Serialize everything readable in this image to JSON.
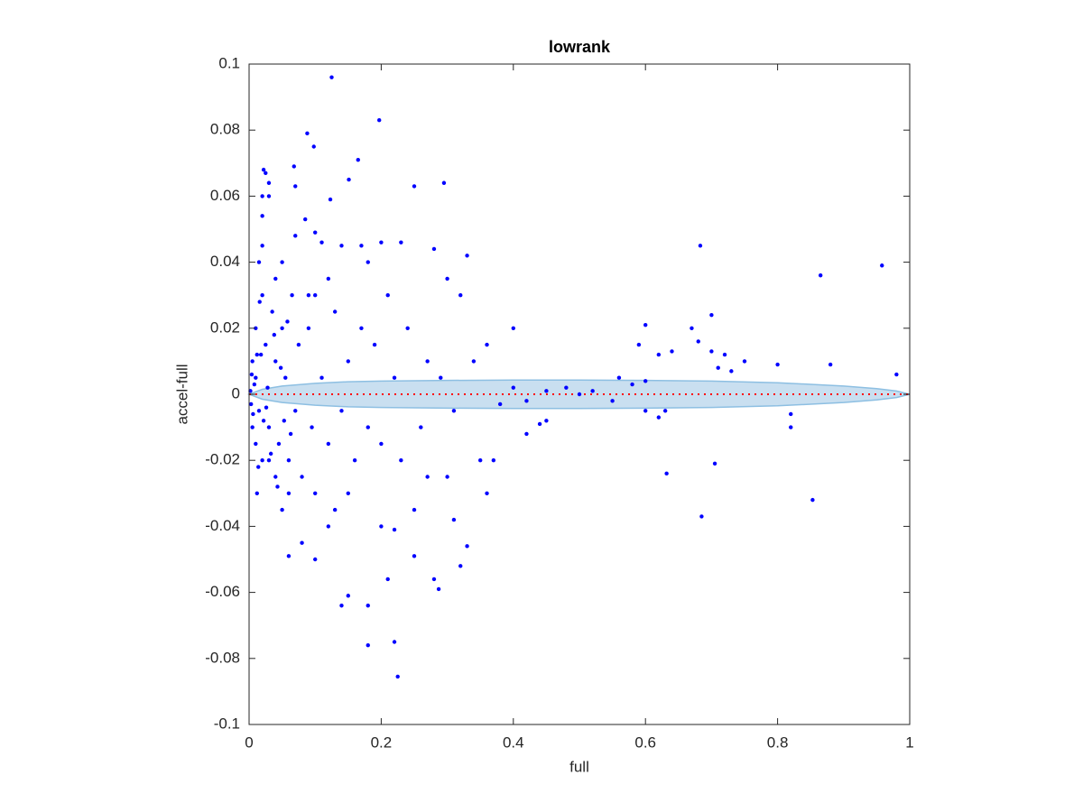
{
  "chart_data": {
    "type": "scatter",
    "title": "lowrank",
    "xlabel": "full",
    "ylabel": "accel-full",
    "xlim": [
      0,
      1
    ],
    "xticks": [
      0,
      0.2,
      0.4,
      0.6,
      0.8,
      1
    ],
    "ylim": [
      -0.1,
      0.1
    ],
    "yticks": [
      -0.1,
      -0.08,
      -0.06,
      -0.04,
      -0.02,
      0,
      0.02,
      0.04,
      0.06,
      0.08,
      0.1
    ],
    "band": {
      "color": "#c9dff0",
      "edge_color": "#8dbfe2",
      "x": [
        0,
        0.02,
        0.05,
        0.1,
        0.15,
        0.2,
        0.3,
        0.4,
        0.5,
        0.6,
        0.7,
        0.8,
        0.85,
        0.9,
        0.95,
        0.98,
        1
      ],
      "upper": [
        0,
        0.0015,
        0.0025,
        0.0033,
        0.0038,
        0.004,
        0.0042,
        0.0043,
        0.0043,
        0.0042,
        0.004,
        0.0035,
        0.003,
        0.0025,
        0.0017,
        0.001,
        0
      ],
      "lower": [
        0,
        -0.0015,
        -0.0025,
        -0.0033,
        -0.0038,
        -0.004,
        -0.0042,
        -0.0043,
        -0.0043,
        -0.0042,
        -0.004,
        -0.0035,
        -0.003,
        -0.0025,
        -0.0017,
        -0.001,
        0
      ]
    },
    "reference_line": {
      "y": 0,
      "color": "#ff0000"
    },
    "series": [
      {
        "color": "#0000ff",
        "x": [
          0.125,
          0.197,
          0.088,
          0.098,
          0.165,
          0.068,
          0.022,
          0.025,
          0.03,
          0.07,
          0.151,
          0.25,
          0.295,
          0.02,
          0.03,
          0.123,
          0.02,
          0.085,
          0.07,
          0.1,
          0.11,
          0.2,
          0.23,
          0.28,
          0.33,
          0.683,
          0.865,
          0.958,
          0.02,
          0.05,
          0.14,
          0.17,
          0.18,
          0.3,
          0.32,
          0.4,
          0.6,
          0.7,
          0.67,
          0.72,
          0.75,
          0.8,
          0.88,
          0.98,
          0.59,
          0.62,
          0.64,
          0.68,
          0.7,
          0.71,
          0.73,
          0.56,
          0.6,
          0.225,
          0.18,
          0.22,
          0.18,
          0.14,
          0.15,
          0.287,
          0.21,
          0.28,
          0.32,
          0.25,
          0.06,
          0.1,
          0.33,
          0.31,
          0.36,
          0.685,
          0.853,
          0.632,
          0.705,
          0.82,
          0.82,
          0.6,
          0.62,
          0.63,
          0.44,
          0.45,
          0.42,
          0.35,
          0.37,
          0.3,
          0.27,
          0.08,
          0.12,
          0.13,
          0.2,
          0.22,
          0.25,
          0.1,
          0.05,
          0.04,
          0.03,
          0.06,
          0.15,
          0.005,
          0.005,
          0.01,
          0.01,
          0.01,
          0.015,
          0.008,
          0.003,
          0.02,
          0.02,
          0.025,
          0.03,
          0.035,
          0.04,
          0.045,
          0.05,
          0.055,
          0.06,
          0.065,
          0.07,
          0.075,
          0.08,
          0.09,
          0.095,
          0.1,
          0.11,
          0.12,
          0.13,
          0.14,
          0.15,
          0.16,
          0.17,
          0.18,
          0.19,
          0.2,
          0.21,
          0.22,
          0.23,
          0.24,
          0.26,
          0.27,
          0.29,
          0.31,
          0.34,
          0.36,
          0.38,
          0.4,
          0.42,
          0.45,
          0.48,
          0.5,
          0.52,
          0.55,
          0.58,
          0.12,
          0.09,
          0.04,
          0.015,
          0.012,
          0.018,
          0.022,
          0.028,
          0.033,
          0.038,
          0.043,
          0.048,
          0.053,
          0.058,
          0.063,
          0.002,
          0.004,
          0.006,
          0.012,
          0.014,
          0.016,
          0.026
        ],
        "values": [
          0.096,
          0.083,
          0.079,
          0.075,
          0.071,
          0.069,
          0.068,
          0.067,
          0.064,
          0.063,
          0.065,
          0.063,
          0.064,
          0.06,
          0.06,
          0.059,
          0.054,
          0.053,
          0.048,
          0.049,
          0.046,
          0.046,
          0.046,
          0.044,
          0.042,
          0.045,
          0.036,
          0.039,
          0.045,
          0.04,
          0.045,
          0.045,
          0.04,
          0.035,
          0.03,
          0.02,
          0.021,
          0.024,
          0.02,
          0.012,
          0.01,
          0.009,
          0.009,
          0.006,
          0.015,
          0.012,
          0.013,
          0.016,
          0.013,
          0.008,
          0.007,
          0.005,
          0.004,
          -0.0855,
          -0.076,
          -0.075,
          -0.064,
          -0.064,
          -0.061,
          -0.059,
          -0.056,
          -0.056,
          -0.052,
          -0.049,
          -0.049,
          -0.05,
          -0.046,
          -0.038,
          -0.03,
          -0.037,
          -0.032,
          -0.024,
          -0.021,
          -0.01,
          -0.006,
          -0.005,
          -0.007,
          -0.005,
          -0.009,
          -0.008,
          -0.012,
          -0.02,
          -0.02,
          -0.025,
          -0.025,
          -0.045,
          -0.04,
          -0.035,
          -0.04,
          -0.041,
          -0.035,
          -0.03,
          -0.035,
          -0.025,
          -0.02,
          -0.03,
          -0.03,
          0.01,
          -0.01,
          0.02,
          -0.015,
          0.005,
          -0.005,
          0.003,
          -0.003,
          0.03,
          -0.02,
          0.015,
          -0.01,
          0.025,
          0.01,
          -0.015,
          0.02,
          0.005,
          -0.02,
          0.03,
          -0.005,
          0.015,
          -0.025,
          0.02,
          -0.01,
          0.03,
          0.005,
          -0.015,
          0.025,
          -0.005,
          0.01,
          -0.02,
          0.02,
          -0.01,
          0.015,
          -0.015,
          0.03,
          0.005,
          -0.02,
          0.02,
          -0.01,
          0.01,
          0.005,
          -0.005,
          0.01,
          0.015,
          -0.003,
          0.002,
          -0.002,
          0.001,
          0.002,
          0,
          0.001,
          -0.002,
          0.003,
          0.035,
          0.03,
          0.035,
          0.04,
          -0.03,
          0.012,
          -0.008,
          0.002,
          -0.018,
          0.018,
          -0.028,
          0.008,
          -0.008,
          0.022,
          -0.012,
          0.001,
          0.006,
          -0.006,
          0.012,
          -0.022,
          0.028,
          -0.004
        ]
      }
    ]
  }
}
